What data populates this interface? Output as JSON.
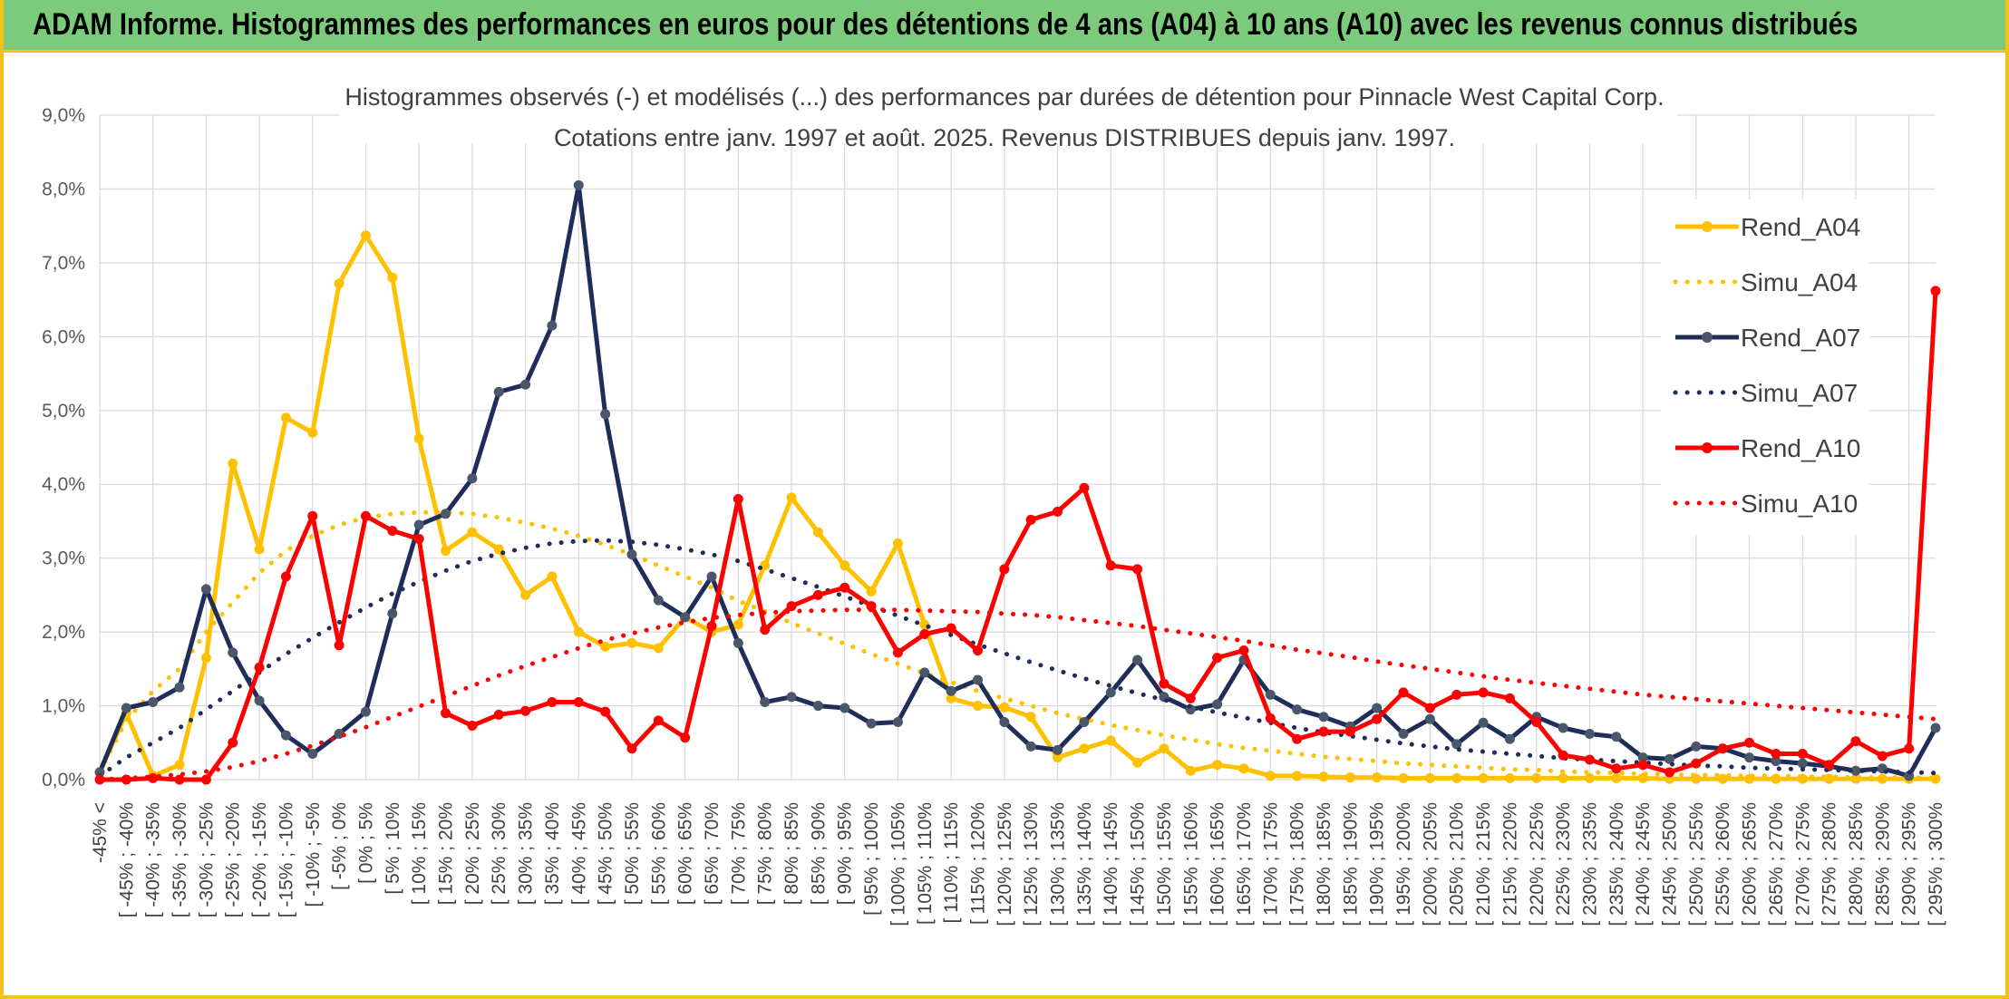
{
  "banner": {
    "title": "ADAM Informe. Histogrammes des performances en euros pour des détentions de 4 ans (A04) à 10 ans (A10) avec les revenus connus distribués"
  },
  "colors": {
    "banner_bg": "#7ccb7c",
    "frame": "#f0c419",
    "A04": "#ffc000",
    "A07": "#1f2d5a",
    "A07_marker": "#4a5669",
    "A10": "#ff0000"
  },
  "chart_data": {
    "type": "line",
    "title": "Histogrammes observés (-) et modélisés (...) des performances par durées de détention pour Pinnacle West Capital Corp.",
    "subtitle": "Cotations entre janv. 1997 et août. 2025. Revenus DISTRIBUES depuis janv. 1997.",
    "xlabel": "",
    "ylabel": "",
    "ylim": [
      0,
      9
    ],
    "y_ticks": [
      "0,0%",
      "1,0%",
      "2,0%",
      "3,0%",
      "4,0%",
      "5,0%",
      "6,0%",
      "7,0%",
      "8,0%",
      "9,0%"
    ],
    "grid": true,
    "legend_position": "right",
    "categories": [
      "-45% <",
      "[ -45% ; -40%",
      "[ -40% ; -35%",
      "[ -35% ; -30%",
      "[ -30% ; -25%",
      "[ -25% ; -20%",
      "[ -20% ; -15%",
      "[ -15% ; -10%",
      "[ -10% ; -5%",
      "[ -5% ; 0%",
      "[ 0% ; 5%",
      "[ 5% ; 10%",
      "[ 10% ; 15%",
      "[ 15% ; 20%",
      "[ 20% ; 25%",
      "[ 25% ; 30%",
      "[ 30% ; 35%",
      "[ 35% ; 40%",
      "[ 40% ; 45%",
      "[ 45% ; 50%",
      "[ 50% ; 55%",
      "[ 55% ; 60%",
      "[ 60% ; 65%",
      "[ 65% ; 70%",
      "[ 70% ; 75%",
      "[ 75% ; 80%",
      "[ 80% ; 85%",
      "[ 85% ; 90%",
      "[ 90% ; 95%",
      "[ 95% ; 100%",
      "[ 100% ; 105%",
      "[ 105% ; 110%",
      "[ 110% ; 115%",
      "[ 115% ; 120%",
      "[ 120% ; 125%",
      "[ 125% ; 130%",
      "[ 130% ; 135%",
      "[ 135% ; 140%",
      "[ 140% ; 145%",
      "[ 145% ; 150%",
      "[ 150% ; 155%",
      "[ 155% ; 160%",
      "[ 160% ; 165%",
      "[ 165% ; 170%",
      "[ 170% ; 175%",
      "[ 175% ; 180%",
      "[ 180% ; 185%",
      "[ 185% ; 190%",
      "[ 190% ; 195%",
      "[ 195% ; 200%",
      "[ 200% ; 205%",
      "[ 205% ; 210%",
      "[ 210% ; 215%",
      "[ 215% ; 220%",
      "[ 220% ; 225%",
      "[ 225% ; 230%",
      "[ 230% ; 235%",
      "[ 235% ; 240%",
      "[ 240% ; 245%",
      "[ 245% ; 250%",
      "[ 250% ; 255%",
      "[ 255% ; 260%",
      "[ 260% ; 265%",
      "[ 265% ; 270%",
      "[ 270% ; 275%",
      "[ 275% ; 280%",
      "[ 280% ; 285%",
      "[ 285% ; 290%",
      "[ 290% ; 295%",
      "[ 295% ; 300%"
    ],
    "series": [
      {
        "name": "Rend_A04",
        "style": "solid",
        "marker": true,
        "values": [
          0.1,
          0.9,
          0.05,
          0.2,
          1.65,
          4.28,
          3.12,
          4.9,
          4.7,
          6.72,
          7.37,
          6.8,
          4.62,
          3.1,
          3.35,
          3.12,
          2.5,
          2.75,
          2.0,
          1.8,
          1.85,
          1.78,
          2.2,
          2.0,
          2.1,
          2.9,
          3.82,
          3.35,
          2.9,
          2.55,
          3.2,
          2.1,
          1.1,
          1.0,
          0.98,
          0.85,
          0.3,
          0.42,
          0.53,
          0.23,
          0.42,
          0.12,
          0.2,
          0.15,
          0.05,
          0.05,
          0.04,
          0.03,
          0.03,
          0.02,
          0.02,
          0.02,
          0.02,
          0.02,
          0.02,
          0.02,
          0.02,
          0.02,
          0.02,
          0.01,
          0.01,
          0.01,
          0.01,
          0.01,
          0.01,
          0.01,
          0.01,
          0.01,
          0.01,
          0.01
        ]
      },
      {
        "name": "Simu_A04",
        "style": "dotted",
        "marker": false,
        "values": [
          0.1,
          0.8,
          1.2,
          1.5,
          2.0,
          2.4,
          2.8,
          3.1,
          3.3,
          3.45,
          3.55,
          3.6,
          3.62,
          3.62,
          3.6,
          3.55,
          3.48,
          3.4,
          3.3,
          3.18,
          3.05,
          2.9,
          2.75,
          2.6,
          2.42,
          2.28,
          2.12,
          1.98,
          1.84,
          1.7,
          1.57,
          1.44,
          1.32,
          1.2,
          1.1,
          1.0,
          0.9,
          0.82,
          0.74,
          0.67,
          0.6,
          0.54,
          0.48,
          0.43,
          0.39,
          0.35,
          0.31,
          0.28,
          0.25,
          0.22,
          0.2,
          0.18,
          0.16,
          0.14,
          0.13,
          0.11,
          0.1,
          0.09,
          0.08,
          0.07,
          0.06,
          0.06,
          0.05,
          0.05,
          0.04,
          0.04,
          0.03,
          0.03,
          0.03,
          0.02
        ]
      },
      {
        "name": "Rend_A07",
        "style": "solid",
        "marker": true,
        "values": [
          0.1,
          0.97,
          1.05,
          1.25,
          2.58,
          1.72,
          1.07,
          0.6,
          0.35,
          0.62,
          0.92,
          2.25,
          3.45,
          3.6,
          4.08,
          5.25,
          5.35,
          6.15,
          8.05,
          4.95,
          3.05,
          2.43,
          2.2,
          2.75,
          1.85,
          1.05,
          1.12,
          1.0,
          0.97,
          0.76,
          0.78,
          1.45,
          1.2,
          1.35,
          0.78,
          0.45,
          0.4,
          0.78,
          1.18,
          1.62,
          1.12,
          0.95,
          1.02,
          1.62,
          1.15,
          0.95,
          0.85,
          0.72,
          0.97,
          0.62,
          0.82,
          0.48,
          0.77,
          0.55,
          0.85,
          0.7,
          0.62,
          0.58,
          0.3,
          0.28,
          0.45,
          0.42,
          0.3,
          0.25,
          0.22,
          0.18,
          0.12,
          0.15,
          0.05,
          0.7
        ]
      },
      {
        "name": "Simu_A07",
        "style": "dotted",
        "marker": false,
        "values": [
          0.05,
          0.3,
          0.5,
          0.7,
          0.95,
          1.2,
          1.45,
          1.7,
          1.92,
          2.13,
          2.33,
          2.52,
          2.68,
          2.83,
          2.96,
          3.06,
          3.14,
          3.2,
          3.23,
          3.24,
          3.22,
          3.18,
          3.12,
          3.05,
          2.96,
          2.85,
          2.73,
          2.61,
          2.48,
          2.35,
          2.22,
          2.09,
          1.96,
          1.83,
          1.71,
          1.59,
          1.48,
          1.37,
          1.27,
          1.17,
          1.08,
          0.99,
          0.91,
          0.84,
          0.77,
          0.7,
          0.64,
          0.59,
          0.54,
          0.49,
          0.45,
          0.41,
          0.38,
          0.35,
          0.32,
          0.29,
          0.27,
          0.25,
          0.23,
          0.21,
          0.19,
          0.18,
          0.16,
          0.15,
          0.14,
          0.13,
          0.12,
          0.11,
          0.1,
          0.09
        ]
      },
      {
        "name": "Rend_A10",
        "style": "solid",
        "marker": true,
        "values": [
          0.0,
          0.0,
          0.02,
          0.0,
          0.0,
          0.5,
          1.52,
          2.75,
          3.57,
          1.82,
          3.57,
          3.37,
          3.26,
          0.9,
          0.73,
          0.88,
          0.93,
          1.05,
          1.05,
          0.92,
          0.42,
          0.8,
          0.57,
          2.08,
          3.8,
          2.03,
          2.35,
          2.5,
          2.6,
          2.35,
          1.72,
          1.97,
          2.05,
          1.75,
          2.85,
          3.52,
          3.63,
          3.95,
          2.9,
          2.85,
          1.3,
          1.1,
          1.65,
          1.75,
          0.83,
          0.55,
          0.65,
          0.65,
          0.82,
          1.18,
          0.97,
          1.15,
          1.18,
          1.1,
          0.78,
          0.33,
          0.27,
          0.15,
          0.2,
          0.1,
          0.22,
          0.42,
          0.5,
          0.35,
          0.35,
          0.2,
          0.52,
          0.32,
          0.42,
          6.62
        ]
      },
      {
        "name": "Simu_A10",
        "style": "dotted",
        "marker": false,
        "values": [
          0.0,
          0.02,
          0.04,
          0.07,
          0.11,
          0.17,
          0.25,
          0.35,
          0.46,
          0.58,
          0.71,
          0.85,
          0.99,
          1.13,
          1.27,
          1.41,
          1.54,
          1.66,
          1.78,
          1.89,
          1.98,
          2.06,
          2.13,
          2.19,
          2.23,
          2.26,
          2.28,
          2.29,
          2.3,
          2.3,
          2.3,
          2.29,
          2.28,
          2.27,
          2.25,
          2.23,
          2.2,
          2.16,
          2.12,
          2.08,
          2.03,
          1.98,
          1.93,
          1.88,
          1.82,
          1.76,
          1.71,
          1.66,
          1.6,
          1.55,
          1.5,
          1.45,
          1.4,
          1.35,
          1.31,
          1.27,
          1.23,
          1.19,
          1.15,
          1.12,
          1.09,
          1.06,
          1.03,
          1.0,
          0.97,
          0.94,
          0.91,
          0.88,
          0.85,
          0.82
        ]
      }
    ]
  }
}
